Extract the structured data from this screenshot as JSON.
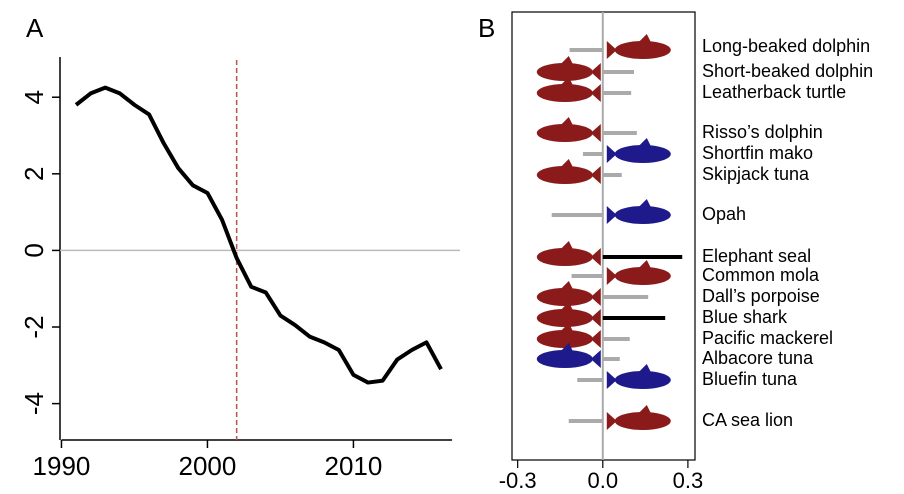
{
  "chart_data": [
    {
      "type": "line",
      "panel": "A",
      "x": [
        1991,
        1992,
        1993,
        1994,
        1995,
        1996,
        1997,
        1998,
        1999,
        2000,
        2001,
        2002,
        2003,
        2004,
        2005,
        2006,
        2007,
        2008,
        2009,
        2010,
        2011,
        2012,
        2013,
        2014,
        2015,
        2016
      ],
      "values": [
        3.8,
        4.1,
        4.25,
        4.1,
        3.8,
        3.55,
        2.8,
        2.15,
        1.7,
        1.5,
        0.8,
        -0.2,
        -0.95,
        -1.1,
        -1.7,
        -1.95,
        -2.25,
        -2.4,
        -2.6,
        -3.25,
        -3.45,
        -3.4,
        -2.85,
        -2.6,
        -2.4,
        -3.1
      ],
      "color": "#000000",
      "xlim": [
        1989.9,
        2017.3
      ],
      "xticks": [
        1990,
        2000,
        2010
      ],
      "ylim": [
        -4.95,
        5.05
      ],
      "yticks": [
        -4,
        -2,
        0,
        2,
        4
      ],
      "reference_line": 0,
      "reference_color": "#bbbbbb",
      "vline": 2002,
      "vline_color": "#c0504d"
    },
    {
      "type": "hbar",
      "panel": "B",
      "categories": [
        "Long-beaked dolphin",
        "Short-beaked dolphin",
        "Leatherback turtle",
        "Risso’s dolphin",
        "Shortfin mako",
        "Skipjack tuna",
        "Opah",
        "Elephant seal",
        "Common mola",
        "Dall’s porpoise",
        "Blue shark",
        "Pacific mackerel",
        "Albacore tuna",
        "Bluefin tuna",
        "CA sea lion"
      ],
      "values": [
        -0.117,
        0.11,
        0.1,
        0.12,
        -0.07,
        0.067,
        -0.18,
        0.28,
        -0.11,
        0.16,
        0.22,
        0.095,
        0.06,
        -0.09,
        -0.12
      ],
      "bar_colors": [
        "#aaaaaa",
        "#aaaaaa",
        "#aaaaaa",
        "#aaaaaa",
        "#aaaaaa",
        "#aaaaaa",
        "#aaaaaa",
        "#000000",
        "#aaaaaa",
        "#aaaaaa",
        "#000000",
        "#aaaaaa",
        "#aaaaaa",
        "#aaaaaa",
        "#aaaaaa"
      ],
      "icon_colors": [
        "#8b1a1a",
        "#8b1a1a",
        "#8b1a1a",
        "#8b1a1a",
        "#1f1a8c",
        "#8b1a1a",
        "#1f1a8c",
        "#8b1a1a",
        "#8b1a1a",
        "#8b1a1a",
        "#8b1a1a",
        "#8b1a1a",
        "#1f1a8c",
        "#1f1a8c",
        "#8b1a1a"
      ],
      "xlim": [
        -0.32,
        0.325
      ],
      "xticks": [
        -0.3,
        {
          "value": 0,
          "label": "0.0"
        },
        0.3
      ]
    }
  ]
}
